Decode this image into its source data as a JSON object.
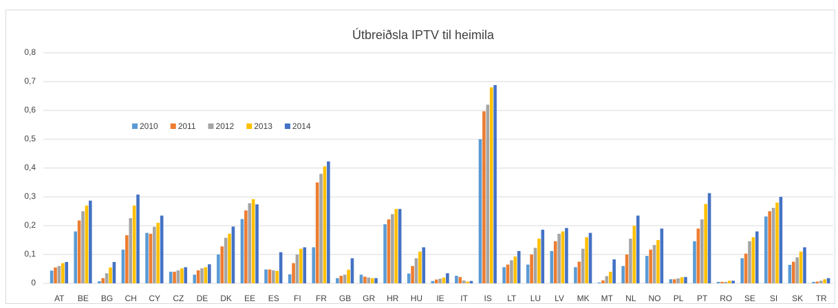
{
  "chart_data": {
    "type": "bar",
    "title": "Útbreiðsla IPTV til heimila",
    "categories": [
      "AT",
      "BE",
      "BG",
      "CH",
      "CY",
      "CZ",
      "DE",
      "DK",
      "EE",
      "ES",
      "FI",
      "FR",
      "GB",
      "GR",
      "HR",
      "HU",
      "IE",
      "IT",
      "IS",
      "LT",
      "LU",
      "LV",
      "MK",
      "MT",
      "NL",
      "NO",
      "PL",
      "PT",
      "RO",
      "SE",
      "SI",
      "SK",
      "TR"
    ],
    "series": [
      {
        "name": "2010",
        "color": "#5b9bd5",
        "values": [
          0.044,
          0.18,
          0.007,
          0.117,
          0.175,
          0.04,
          0.03,
          0.1,
          0.223,
          0.048,
          0.031,
          0.125,
          0.018,
          0.03,
          0.205,
          0.034,
          0.008,
          0.026,
          0.5,
          0.056,
          0.065,
          0.112,
          0.056,
          0.003,
          0.06,
          0.095,
          0.014,
          0.146,
          0.005,
          0.087,
          0.232,
          0.064,
          0.005
        ]
      },
      {
        "name": "2011",
        "color": "#ed7d31",
        "values": [
          0.055,
          0.218,
          0.018,
          0.167,
          0.172,
          0.04,
          0.045,
          0.128,
          0.253,
          0.048,
          0.07,
          0.35,
          0.026,
          0.023,
          0.222,
          0.06,
          0.013,
          0.022,
          0.597,
          0.065,
          0.1,
          0.146,
          0.075,
          0.01,
          0.1,
          0.117,
          0.014,
          0.19,
          0.005,
          0.103,
          0.25,
          0.075,
          0.006
        ]
      },
      {
        "name": "2012",
        "color": "#a5a5a5",
        "values": [
          0.06,
          0.25,
          0.035,
          0.226,
          0.196,
          0.045,
          0.052,
          0.158,
          0.278,
          0.045,
          0.1,
          0.38,
          0.03,
          0.02,
          0.24,
          0.087,
          0.016,
          0.01,
          0.62,
          0.08,
          0.123,
          0.172,
          0.12,
          0.025,
          0.155,
          0.133,
          0.017,
          0.222,
          0.005,
          0.146,
          0.262,
          0.09,
          0.009
        ]
      },
      {
        "name": "2013",
        "color": "#ffc000",
        "values": [
          0.07,
          0.27,
          0.055,
          0.27,
          0.21,
          0.052,
          0.056,
          0.172,
          0.292,
          0.043,
          0.12,
          0.406,
          0.047,
          0.018,
          0.258,
          0.11,
          0.02,
          0.006,
          0.68,
          0.093,
          0.155,
          0.18,
          0.16,
          0.04,
          0.2,
          0.15,
          0.021,
          0.275,
          0.009,
          0.16,
          0.28,
          0.11,
          0.014
        ]
      },
      {
        "name": "2014",
        "color": "#4472c4",
        "values": [
          0.074,
          0.287,
          0.074,
          0.308,
          0.235,
          0.056,
          0.066,
          0.197,
          0.274,
          0.108,
          0.125,
          0.423,
          0.087,
          0.018,
          0.258,
          0.125,
          0.035,
          0.008,
          0.688,
          0.112,
          0.186,
          0.192,
          0.175,
          0.083,
          0.235,
          0.19,
          0.022,
          0.313,
          0.009,
          0.18,
          0.3,
          0.125,
          0.018
        ]
      }
    ],
    "ylim": [
      0,
      0.8
    ],
    "yticks": [
      0,
      {
        "value": 0.1,
        "label": "0,1"
      },
      {
        "value": 0.2,
        "label": "0,2"
      },
      {
        "value": 0.3,
        "label": "0,3"
      },
      {
        "value": 0.4,
        "label": "0,4"
      },
      {
        "value": 0.5,
        "label": "0,5"
      },
      {
        "value": 0.6,
        "label": "0,6"
      },
      {
        "value": 0.7,
        "label": "0,7"
      },
      {
        "value": 0.8,
        "label": "0,8"
      }
    ],
    "grid": true
  }
}
